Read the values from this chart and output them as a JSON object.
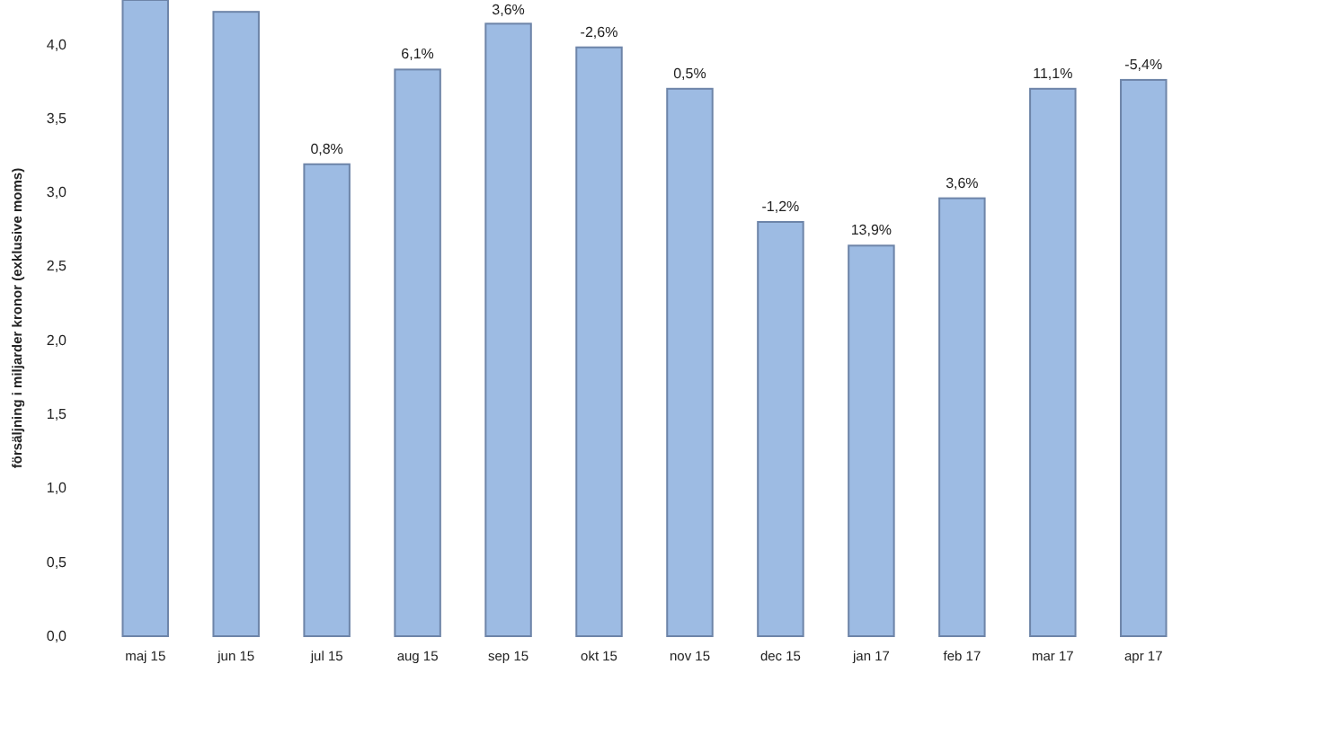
{
  "chart_data": {
    "type": "bar",
    "ylabel": "försäljning i miljarder kronor (exklusive moms)",
    "categories": [
      "maj 15",
      "jun 15",
      "jul 15",
      "aug 15",
      "sep 15",
      "okt 15",
      "nov 15",
      "dec 15",
      "jan 17",
      "feb 17",
      "mar 17",
      "apr 17"
    ],
    "values": [
      4.3,
      4.22,
      3.19,
      3.83,
      4.14,
      3.98,
      3.7,
      2.8,
      2.64,
      2.96,
      3.7,
      3.76
    ],
    "annotations": [
      {
        "text": "0,8%",
        "x": "jul 15",
        "y": 3.19
      },
      {
        "text": "6,1%",
        "x": "aug 15",
        "y": 3.83
      },
      {
        "text": "3,6%",
        "x": "sep 15",
        "y": 4.14
      },
      {
        "text": "-2,6%",
        "x": "okt 15",
        "y": 3.98
      },
      {
        "text": "0,5%",
        "x": "nov 15",
        "y": 3.7
      },
      {
        "text": "-1,2%",
        "x": "dec 15",
        "y": 2.8
      },
      {
        "text": "13,9%",
        "x": "jan 17",
        "y": 2.64
      },
      {
        "text": "3,6%",
        "x": "feb 17",
        "y": 2.96
      },
      {
        "text": "11,1%",
        "x": "mar 17",
        "y": 3.7
      },
      {
        "text": "-5,4%",
        "x": "apr 17",
        "y": 3.76
      }
    ],
    "color": "#9dbbe3",
    "ylim": [
      0,
      4.3
    ],
    "yticks": [
      {
        "value": 0,
        "label": "0,0"
      },
      {
        "value": 0.5,
        "label": "0,5"
      },
      {
        "value": 1,
        "label": "1,0"
      },
      {
        "value": 1.5,
        "label": "1,5"
      },
      {
        "value": 2,
        "label": "2,0"
      },
      {
        "value": 2.5,
        "label": "2,5"
      },
      {
        "value": 3,
        "label": "3,0"
      },
      {
        "value": 3.5,
        "label": "3,5"
      },
      {
        "value": 4,
        "label": "4,0"
      }
    ],
    "grid": false
  }
}
